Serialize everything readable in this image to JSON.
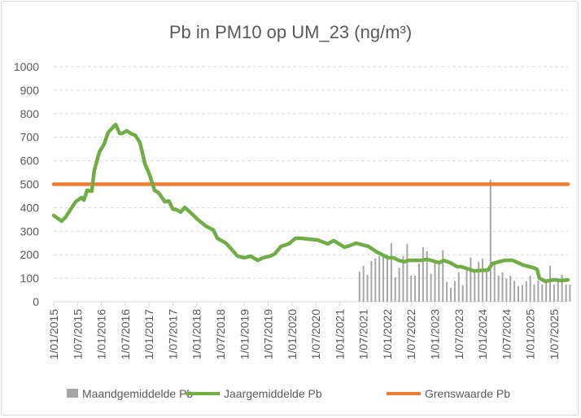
{
  "chart_data": {
    "type": "line",
    "title": "Pb in PM10 op UM_23 (ng/m³)",
    "xlabel": "",
    "ylabel": "",
    "ylim": [
      0,
      1000
    ],
    "yticks": [
      "0",
      "100",
      "200",
      "300",
      "400",
      "500",
      "600",
      "700",
      "800",
      "900",
      "1000"
    ],
    "x_unit": "months since 1/01/2015",
    "xlim": [
      0,
      129.5
    ],
    "xtick_labels": [
      "1/01/2015",
      "1/07/2015",
      "1/01/2016",
      "1/07/2016",
      "1/01/2017",
      "1/07/2017",
      "1/01/2018",
      "1/07/2018",
      "1/01/2019",
      "1/07/2019",
      "1/01/2020",
      "1/07/2020",
      "1/01/2021",
      "1/07/2021",
      "1/01/2022",
      "1/07/2022",
      "1/01/2023",
      "1/07/2023",
      "1/01/2024",
      "1/07/2024",
      "1/01/2025",
      "1/07/2025"
    ],
    "grid": true,
    "legend_position": "bottom",
    "colors": {
      "monthly": "#a6a6a6",
      "annual": "#70ad47",
      "limit": "#ed7d31",
      "grid": "#d9d9d9",
      "text": "#595959"
    },
    "series": [
      {
        "name": "Maandgemiddelde Pb",
        "kind": "bar",
        "start_month": 77,
        "values": [
          128,
          153,
          115,
          173,
          184,
          194,
          200,
          200,
          249,
          104,
          145,
          194,
          246,
          111,
          111,
          163,
          232,
          215,
          119,
          165,
          163,
          219,
          84,
          59,
          88,
          125,
          70,
          134,
          188,
          137,
          170,
          183,
          133,
          519,
          159,
          111,
          125,
          98,
          111,
          88,
          67,
          70,
          88,
          111,
          73,
          90,
          73,
          84,
          153,
          73,
          84,
          115,
          73,
          73
        ]
      },
      {
        "name": "Jaargemiddelde Pb",
        "kind": "line",
        "x": [
          0,
          2,
          3,
          5.5,
          7,
          7.6,
          8.4,
          9.6,
          10.2,
          11.5,
          12.7,
          13.7,
          15.6,
          16.6,
          17.2,
          18.4,
          19.7,
          20.5,
          21.7,
          23,
          24,
          25.4,
          26.4,
          28,
          29,
          30,
          31,
          32,
          33,
          34.6,
          36.3,
          38.3,
          40.2,
          41.2,
          43.4,
          46.3,
          48,
          49.6,
          51.4,
          52.7,
          54.5,
          55.7,
          57.2,
          59.2,
          60.9,
          62.3,
          64.3,
          66.4,
          69,
          70.5,
          73.2,
          74.6,
          76.2,
          79.3,
          81.4,
          84.2,
          85.5,
          86.9,
          88.3,
          89.3,
          92.4,
          94,
          95.7,
          97.1,
          98.2,
          99.8,
          101.6,
          102.7,
          103.9,
          105.9,
          109.4,
          110.5,
          113.5,
          115.6,
          118.2,
          120.7,
          121.7,
          122.3,
          123.8,
          125.8,
          127.9,
          129.5
        ],
        "values": [
          367,
          343,
          360,
          425,
          443,
          432,
          474,
          470,
          557,
          637,
          671,
          720,
          754,
          716,
          716,
          727,
          713,
          709,
          678,
          585,
          547,
          474,
          464,
          425,
          429,
          394,
          391,
          381,
          401,
          377,
          349,
          322,
          305,
          270,
          249,
          194,
          187,
          194,
          176,
          187,
          194,
          204,
          235,
          246,
          270,
          270,
          266,
          263,
          246,
          260,
          232,
          239,
          249,
          235,
          211,
          187,
          187,
          176,
          170,
          176,
          176,
          180,
          173,
          166,
          176,
          166,
          149,
          149,
          142,
          131,
          135,
          163,
          176,
          176,
          156,
          145,
          138,
          100,
          87,
          93,
          90,
          93
        ]
      },
      {
        "name": "Grenswaarde Pb",
        "kind": "line",
        "x": [
          0,
          129.5
        ],
        "values": [
          500,
          500
        ]
      }
    ]
  }
}
